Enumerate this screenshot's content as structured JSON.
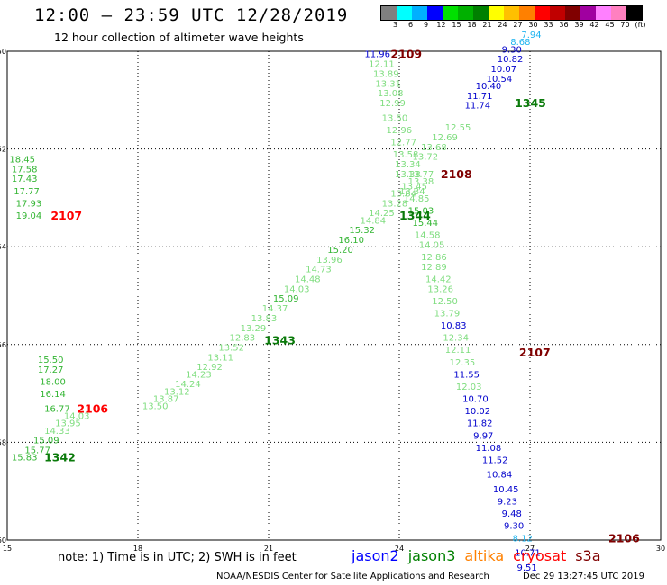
{
  "header": {
    "title": "12:00 – 23:59 UTC 12/28/2019",
    "subtitle": "12 hour collection of altimeter wave heights"
  },
  "legend": {
    "colors": [
      "#808080",
      "#00ffff",
      "#00b0ff",
      "#0000ff",
      "#00e000",
      "#00b000",
      "#008000",
      "#ffff00",
      "#ffc000",
      "#ff8000",
      "#ff0000",
      "#c00000",
      "#800000",
      "#a000a0",
      "#ff80ff",
      "#ff80c0",
      "#000000"
    ],
    "labels": [
      "3",
      "6",
      "9",
      "12",
      "15",
      "18",
      "21",
      "24",
      "27",
      "30",
      "33",
      "36",
      "39",
      "42",
      "45",
      "70",
      "(ft)"
    ]
  },
  "footer": {
    "note": "note: 1) Time is in UTC; 2) SWH is in feet",
    "satellites": [
      {
        "name": "jason2",
        "color": "#0000ff"
      },
      {
        "name": "jason3",
        "color": "#008000"
      },
      {
        "name": "altika",
        "color": "#ff8000"
      },
      {
        "name": "cryosat",
        "color": "#ff0000"
      },
      {
        "name": "s3a",
        "color": "#800000"
      }
    ],
    "credit": "NOAA/NESDIS Center for Satellite Applications and Research",
    "timestamp": "Dec 29 13:27:45 UTC 2019"
  },
  "chart_data": {
    "type": "scatter",
    "title": "12:00 – 23:59 UTC 12/28/2019",
    "subtitle": "12 hour collection of altimeter wave heights",
    "xlim": [
      15,
      30
    ],
    "ylim": [
      -60,
      -50
    ],
    "xticks": [
      15,
      18,
      21,
      24,
      27,
      30
    ],
    "yticks": [
      -50,
      -52,
      -54,
      -56,
      -58,
      -60
    ],
    "grid": true,
    "colors": {
      "c15": "#7fdd7f",
      "c18": "#33b533",
      "c21": "#0a7a0a",
      "c12": "#0000cc",
      "c9": "#1eb4f0"
    },
    "series": [
      {
        "name": "2109",
        "label_color": "#800000",
        "label": {
          "text": "2109",
          "x": 23.8,
          "y": -50.05
        },
        "points": [
          {
            "x": 23.2,
            "y": -50.05,
            "v": "11.96",
            "c": "c12"
          },
          {
            "x": 23.3,
            "y": -50.25,
            "v": "12.11",
            "c": "c15"
          },
          {
            "x": 23.4,
            "y": -50.45,
            "v": "13.89",
            "c": "c15"
          },
          {
            "x": 23.45,
            "y": -50.65,
            "v": "13.31",
            "c": "c15"
          },
          {
            "x": 23.5,
            "y": -50.85,
            "v": "13.08",
            "c": "c15"
          },
          {
            "x": 23.55,
            "y": -51.05,
            "v": "12.99",
            "c": "c15"
          },
          {
            "x": 23.6,
            "y": -51.35,
            "v": "13.50",
            "c": "c15"
          },
          {
            "x": 23.7,
            "y": -51.6,
            "v": "12.96",
            "c": "c15"
          },
          {
            "x": 23.8,
            "y": -51.85,
            "v": "12.77",
            "c": "c15"
          },
          {
            "x": 23.85,
            "y": -52.1,
            "v": "13.58",
            "c": "c15"
          },
          {
            "x": 23.9,
            "y": -52.3,
            "v": "13.34",
            "c": "c15"
          },
          {
            "x": 23.9,
            "y": -52.5,
            "v": "13.38",
            "c": "c15"
          },
          {
            "x": 24.05,
            "y": -52.75,
            "v": "13.45",
            "c": "c15"
          },
          {
            "x": 24.1,
            "y": -53.0,
            "v": "14.85",
            "c": "c15"
          },
          {
            "x": 24.2,
            "y": -53.25,
            "v": "15.03",
            "c": "c18"
          },
          {
            "x": 24.3,
            "y": -53.5,
            "v": "15.44",
            "c": "c18"
          },
          {
            "x": 24.35,
            "y": -53.75,
            "v": "14.58",
            "c": "c15"
          },
          {
            "x": 24.45,
            "y": -53.95,
            "v": "14.05",
            "c": "c15"
          },
          {
            "x": 24.5,
            "y": -54.2,
            "v": "12.86",
            "c": "c15"
          },
          {
            "x": 24.5,
            "y": -54.4,
            "v": "12.89",
            "c": "c15"
          },
          {
            "x": 24.6,
            "y": -54.65,
            "v": "14.42",
            "c": "c15"
          },
          {
            "x": 24.65,
            "y": -54.85,
            "v": "13.26",
            "c": "c15"
          },
          {
            "x": 24.75,
            "y": -55.1,
            "v": "12.50",
            "c": "c15"
          },
          {
            "x": 24.8,
            "y": -55.35,
            "v": "13.79",
            "c": "c15"
          },
          {
            "x": 24.95,
            "y": -55.6,
            "v": "10.83",
            "c": "c12"
          },
          {
            "x": 25.0,
            "y": -55.85,
            "v": "12.34",
            "c": "c15"
          },
          {
            "x": 25.05,
            "y": -56.1,
            "v": "12.11",
            "c": "c15"
          },
          {
            "x": 25.15,
            "y": -56.35,
            "v": "12.35",
            "c": "c15"
          },
          {
            "x": 25.25,
            "y": -56.6,
            "v": "11.55",
            "c": "c12"
          },
          {
            "x": 25.3,
            "y": -56.85,
            "v": "12.03",
            "c": "c15"
          },
          {
            "x": 25.45,
            "y": -57.1,
            "v": "10.70",
            "c": "c12"
          },
          {
            "x": 25.5,
            "y": -57.35,
            "v": "10.02",
            "c": "c12"
          },
          {
            "x": 25.55,
            "y": -57.6,
            "v": "11.82",
            "c": "c12"
          },
          {
            "x": 25.7,
            "y": -57.85,
            "v": "9.97",
            "c": "c12"
          }
        ]
      },
      {
        "name": "2108",
        "label_color": "#800000",
        "label": {
          "text": "2108",
          "x": 24.95,
          "y": -52.5
        },
        "points": [
          {
            "x": 24.3,
            "y": -52.15,
            "v": "13.72",
            "c": "c15"
          },
          {
            "x": 24.5,
            "y": -51.95,
            "v": "13.68",
            "c": "c15"
          },
          {
            "x": 24.75,
            "y": -51.75,
            "v": "12.69",
            "c": "c15"
          },
          {
            "x": 25.05,
            "y": -51.55,
            "v": "12.55",
            "c": "c15"
          },
          {
            "x": 25.5,
            "y": -51.1,
            "v": "11.74",
            "c": "c12"
          },
          {
            "x": 25.55,
            "y": -50.9,
            "v": "11.71",
            "c": "c12"
          },
          {
            "x": 25.75,
            "y": -50.7,
            "v": "10.40",
            "c": "c12"
          },
          {
            "x": 26.0,
            "y": -50.55,
            "v": "10.54",
            "c": "c12"
          },
          {
            "x": 26.1,
            "y": -50.35,
            "v": "10.07",
            "c": "c12"
          },
          {
            "x": 26.25,
            "y": -50.15,
            "v": "10.82",
            "c": "c12"
          },
          {
            "x": 26.35,
            "y": -49.95,
            "v": "9.30",
            "c": "c12"
          },
          {
            "x": 26.55,
            "y": -49.8,
            "v": "8.68",
            "c": "c9"
          },
          {
            "x": 26.8,
            "y": -49.65,
            "v": "7.94",
            "c": "c9"
          }
        ]
      },
      {
        "name": "1345",
        "label_color": "#0a7a0a",
        "label": {
          "text": "1345",
          "x": 26.65,
          "y": -51.05
        },
        "points": []
      },
      {
        "name": "2107 left",
        "label_color": "#ff0000",
        "label": {
          "text": "2107",
          "x": 16.0,
          "y": -53.35
        },
        "points": [
          {
            "x": 15.05,
            "y": -52.2,
            "v": "18.45",
            "c": "c18"
          },
          {
            "x": 15.1,
            "y": -52.4,
            "v": "17.58",
            "c": "c18"
          },
          {
            "x": 15.1,
            "y": -52.6,
            "v": "17.43",
            "c": "c18"
          },
          {
            "x": 15.15,
            "y": -52.85,
            "v": "17.77",
            "c": "c18"
          },
          {
            "x": 15.2,
            "y": -53.1,
            "v": "17.93",
            "c": "c18"
          },
          {
            "x": 15.2,
            "y": -53.35,
            "v": "19.04",
            "c": "c18"
          }
        ]
      },
      {
        "name": "1344",
        "label_color": "#0a7a0a",
        "label": {
          "text": "1344",
          "x": 24.0,
          "y": -53.35
        },
        "points": [
          {
            "x": 24.2,
            "y": -52.5,
            "v": "13.77",
            "c": "c15"
          },
          {
            "x": 24.2,
            "y": -52.65,
            "v": "13.38",
            "c": "c15"
          },
          {
            "x": 24.0,
            "y": -52.85,
            "v": "13.34",
            "c": "c15"
          },
          {
            "x": 23.8,
            "y": -52.9,
            "v": "13.84",
            "c": "c15"
          },
          {
            "x": 23.6,
            "y": -53.1,
            "v": "13.28",
            "c": "c15"
          },
          {
            "x": 23.3,
            "y": -53.3,
            "v": "14.25",
            "c": "c15"
          },
          {
            "x": 23.1,
            "y": -53.45,
            "v": "14.84",
            "c": "c15"
          },
          {
            "x": 22.85,
            "y": -53.65,
            "v": "15.32",
            "c": "c18"
          },
          {
            "x": 22.6,
            "y": -53.85,
            "v": "16.10",
            "c": "c18"
          },
          {
            "x": 22.35,
            "y": -54.05,
            "v": "15.20",
            "c": "c18"
          },
          {
            "x": 22.1,
            "y": -54.25,
            "v": "13.96",
            "c": "c15"
          },
          {
            "x": 21.85,
            "y": -54.45,
            "v": "14.73",
            "c": "c15"
          },
          {
            "x": 21.6,
            "y": -54.65,
            "v": "14.48",
            "c": "c15"
          },
          {
            "x": 21.35,
            "y": -54.85,
            "v": "14.03",
            "c": "c15"
          },
          {
            "x": 21.1,
            "y": -55.05,
            "v": "15.09",
            "c": "c18"
          },
          {
            "x": 20.85,
            "y": -55.25,
            "v": "14.37",
            "c": "c15"
          },
          {
            "x": 20.6,
            "y": -55.45,
            "v": "13.83",
            "c": "c15"
          },
          {
            "x": 20.35,
            "y": -55.65,
            "v": "13.29",
            "c": "c15"
          },
          {
            "x": 20.1,
            "y": -55.85,
            "v": "12.83",
            "c": "c15"
          },
          {
            "x": 19.85,
            "y": -56.05,
            "v": "13.52",
            "c": "c15"
          },
          {
            "x": 19.6,
            "y": -56.25,
            "v": "13.11",
            "c": "c15"
          },
          {
            "x": 19.35,
            "y": -56.45,
            "v": "12.92",
            "c": "c15"
          },
          {
            "x": 19.1,
            "y": -56.6,
            "v": "14.23",
            "c": "c15"
          },
          {
            "x": 18.85,
            "y": -56.8,
            "v": "14.24",
            "c": "c15"
          },
          {
            "x": 18.6,
            "y": -56.95,
            "v": "13.12",
            "c": "c15"
          },
          {
            "x": 18.35,
            "y": -57.1,
            "v": "13.87",
            "c": "c15"
          },
          {
            "x": 18.1,
            "y": -57.25,
            "v": "13.50",
            "c": "c15"
          }
        ]
      },
      {
        "name": "1343",
        "label_color": "#0a7a0a",
        "label": {
          "text": "1343",
          "x": 20.9,
          "y": -55.9
        },
        "points": []
      },
      {
        "name": "2106 left",
        "label_color": "#ff0000",
        "label": {
          "text": "2106",
          "x": 16.6,
          "y": -57.3
        },
        "points": [
          {
            "x": 15.7,
            "y": -56.3,
            "v": "15.50",
            "c": "c18"
          },
          {
            "x": 15.7,
            "y": -56.5,
            "v": "17.27",
            "c": "c18"
          },
          {
            "x": 15.75,
            "y": -56.75,
            "v": "18.00",
            "c": "c18"
          },
          {
            "x": 15.75,
            "y": -57.0,
            "v": "16.14",
            "c": "c18"
          },
          {
            "x": 15.85,
            "y": -57.3,
            "v": "16.77",
            "c": "c18"
          },
          {
            "x": 16.3,
            "y": -57.45,
            "v": "14.03",
            "c": "c15"
          },
          {
            "x": 16.1,
            "y": -57.6,
            "v": "13.95",
            "c": "c15"
          },
          {
            "x": 15.85,
            "y": -57.75,
            "v": "14.33",
            "c": "c15"
          },
          {
            "x": 15.6,
            "y": -57.95,
            "v": "15.09",
            "c": "c18"
          },
          {
            "x": 15.4,
            "y": -58.15,
            "v": "15.77",
            "c": "c18"
          },
          {
            "x": 15.1,
            "y": -58.3,
            "v": "15.83",
            "c": "c18"
          }
        ]
      },
      {
        "name": "1342",
        "label_color": "#0a7a0a",
        "label": {
          "text": "1342",
          "x": 15.85,
          "y": -58.3
        },
        "points": []
      },
      {
        "name": "2107 right",
        "label_color": "#800000",
        "label": {
          "text": "2107",
          "x": 26.75,
          "y": -56.15
        },
        "points": [
          {
            "x": 25.75,
            "y": -58.1,
            "v": "11.08",
            "c": "c12"
          },
          {
            "x": 25.9,
            "y": -58.35,
            "v": "11.52",
            "c": "c12"
          },
          {
            "x": 26.0,
            "y": -58.65,
            "v": "10.84",
            "c": "c12"
          },
          {
            "x": 26.15,
            "y": -58.95,
            "v": "10.45",
            "c": "c12"
          },
          {
            "x": 26.25,
            "y": -59.2,
            "v": "9.23",
            "c": "c12"
          },
          {
            "x": 26.35,
            "y": -59.45,
            "v": "9.48",
            "c": "c12"
          },
          {
            "x": 26.4,
            "y": -59.7,
            "v": "9.30",
            "c": "c12"
          }
        ]
      },
      {
        "name": "2106 right",
        "label_color": "#800000",
        "label": {
          "text": "2106",
          "x": 28.8,
          "y": -59.95
        },
        "points": [
          {
            "x": 26.6,
            "y": -59.95,
            "v": "8.12",
            "c": "c9"
          },
          {
            "x": 26.65,
            "y": -60.25,
            "v": "10.71",
            "c": "c12"
          },
          {
            "x": 26.7,
            "y": -60.55,
            "v": "9.51",
            "c": "c12"
          }
        ]
      }
    ]
  }
}
